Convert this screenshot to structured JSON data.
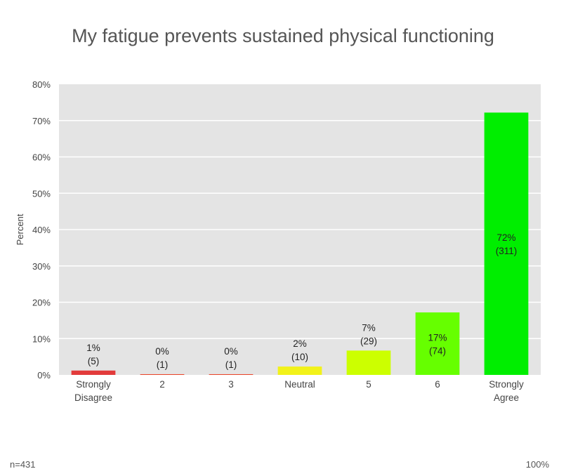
{
  "chart_data": {
    "type": "bar",
    "title": "My fatigue prevents sustained physical functioning",
    "xlabel": "",
    "ylabel": "Percent",
    "ylim": [
      0,
      80
    ],
    "yticks": [
      "0%",
      "10%",
      "20%",
      "30%",
      "40%",
      "50%",
      "60%",
      "70%",
      "80%"
    ],
    "grid": true,
    "categories": [
      "Strongly Disagree",
      "2",
      "3",
      "Neutral",
      "5",
      "6",
      "Strongly Agree"
    ],
    "category_lines": [
      [
        "Strongly",
        "Disagree"
      ],
      [
        "2"
      ],
      [
        "3"
      ],
      [
        "Neutral"
      ],
      [
        "5"
      ],
      [
        "6"
      ],
      [
        "Strongly",
        "Agree"
      ]
    ],
    "values": [
      1.2,
      0.2,
      0.2,
      2.3,
      6.7,
      17.2,
      72.2
    ],
    "value_labels": [
      "1%",
      "0%",
      "0%",
      "2%",
      "7%",
      "17%",
      "72%"
    ],
    "count_labels": [
      "(5)",
      "(1)",
      "(1)",
      "(10)",
      "(29)",
      "(74)",
      "(311)"
    ],
    "colors": [
      "#e23b3b",
      "#e8452a",
      "#e8452a",
      "#f2f21a",
      "#ccff00",
      "#66ff00",
      "#00ee00"
    ]
  },
  "footer": {
    "n_label": "n=431",
    "total_label": "100%"
  },
  "style": {
    "plot_background": "#e4e4e4",
    "grid_color": "#ffffff"
  }
}
